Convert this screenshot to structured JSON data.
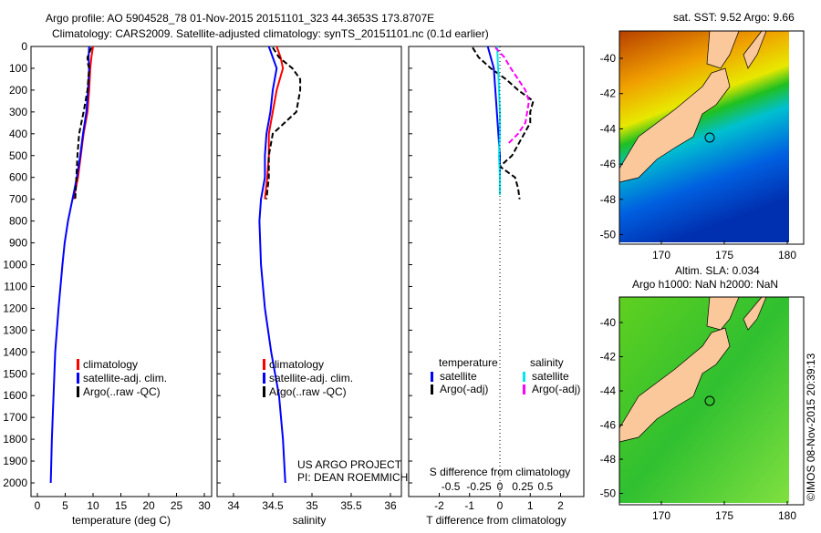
{
  "title_line1": "Argo profile: AO 5904528_78 01-Nov-2015 20151101_323 44.3653S 173.8707E",
  "title_line2": "Climatology: CARS2009. Satellite-adjusted climatology: synTS_20151101.nc (0.1d earlier)",
  "depth_ticks": [
    0,
    100,
    200,
    300,
    400,
    500,
    600,
    700,
    800,
    900,
    1000,
    1100,
    1200,
    1300,
    1400,
    1500,
    1600,
    1700,
    1800,
    1900,
    2000
  ],
  "colors": {
    "clim": "#ff0000",
    "sat": "#0000ff",
    "argo": "#000000",
    "sal_sat": "#00e5ee",
    "sal_argo": "#ff00ff"
  },
  "chart_data": [
    {
      "type": "line",
      "xlabel": "temperature (deg C)",
      "xlim": [
        -1,
        31
      ],
      "ylim": [
        2000,
        0
      ],
      "xticks": [
        0,
        5,
        10,
        15,
        20,
        25,
        30
      ],
      "legend": [
        "climatology",
        "satellite-adj. clim.",
        "Argo(..raw -QC)"
      ],
      "series": [
        {
          "name": "climatology",
          "depth": [
            0,
            50,
            100,
            200,
            300,
            400,
            500,
            600,
            700
          ],
          "values": [
            10,
            9.7,
            9.5,
            9.3,
            9,
            8.3,
            7.8,
            7.3,
            6.5
          ]
        },
        {
          "name": "satellite-adj. clim.",
          "depth": [
            0,
            50,
            100,
            200,
            300,
            400,
            500,
            600,
            700,
            800,
            900,
            1000,
            1200,
            1400,
            1600,
            1800,
            2000
          ],
          "values": [
            9.3,
            9.2,
            9.3,
            9.1,
            8.8,
            8.2,
            7.7,
            7.1,
            6.3,
            5.5,
            4.9,
            4.5,
            3.8,
            3.2,
            2.9,
            2.6,
            2.4
          ]
        },
        {
          "name": "Argo(..raw -QC)",
          "depth": [
            5,
            50,
            80,
            100,
            200,
            300,
            400,
            500,
            600,
            700
          ],
          "values": [
            9.7,
            9.0,
            9.1,
            9.3,
            9.0,
            8.3,
            7.5,
            7.2,
            7.0,
            6.8
          ]
        }
      ]
    },
    {
      "type": "line",
      "xlabel": "salinity",
      "xlim": [
        33.8,
        36.1
      ],
      "ylim": [
        2000,
        0
      ],
      "xticks": [
        34,
        34.5,
        35,
        35.5,
        36
      ],
      "legend": [
        "climatology",
        "satellite-adj. clim.",
        "Argo(..raw -QC)"
      ],
      "annotation": [
        "US ARGO PROJECT",
        "PI: DEAN ROEMMICH"
      ],
      "series": [
        {
          "name": "climatology",
          "depth": [
            0,
            50,
            100,
            200,
            300,
            400,
            500,
            600,
            700
          ],
          "values": [
            34.55,
            34.6,
            34.63,
            34.55,
            34.5,
            34.45,
            34.45,
            34.43,
            34.4
          ]
        },
        {
          "name": "satellite-adj. clim.",
          "depth": [
            0,
            100,
            200,
            300,
            400,
            500,
            600,
            700,
            800,
            1000,
            1200,
            1400,
            1600,
            1800,
            2000
          ],
          "values": [
            34.45,
            34.55,
            34.5,
            34.47,
            34.42,
            34.4,
            34.4,
            34.35,
            34.33,
            34.35,
            34.4,
            34.48,
            34.58,
            34.63,
            34.66
          ]
        },
        {
          "name": "Argo(..raw -QC)",
          "depth": [
            5,
            50,
            100,
            150,
            200,
            300,
            400,
            500,
            600,
            700
          ],
          "values": [
            34.5,
            34.58,
            34.75,
            34.85,
            34.85,
            34.8,
            34.5,
            34.45,
            34.45,
            34.42
          ]
        }
      ]
    },
    {
      "type": "line",
      "xlabel": "T difference from climatology",
      "x2label": "S difference from climatology",
      "xlim": [
        -3,
        3
      ],
      "x2lim": [
        -1,
        1
      ],
      "ylim": [
        2000,
        0
      ],
      "xticks": [
        -2,
        -1,
        0,
        1,
        2
      ],
      "x2ticks": [
        "-0.5",
        "-0.25",
        "0",
        "0.25",
        "0.5"
      ],
      "legend_titles": [
        "temperature",
        "salinity"
      ],
      "legend": [
        "satellite",
        "Argo(-adj)",
        "satellite",
        "Argo(-adj)"
      ],
      "series": [
        {
          "name": "T satellite",
          "axis": "T",
          "depth": [
            0,
            100,
            200,
            300,
            400,
            500,
            600,
            670
          ],
          "values": [
            -0.4,
            -0.2,
            -0.15,
            -0.1,
            -0.05,
            0,
            0,
            0
          ]
        },
        {
          "name": "T Argo(-adj)",
          "axis": "T",
          "depth": [
            5,
            50,
            100,
            150,
            200,
            250,
            300,
            350,
            400,
            450,
            500,
            550,
            600,
            650,
            700
          ],
          "values": [
            -0.9,
            -0.7,
            -0.3,
            0.2,
            0.6,
            1.1,
            1.0,
            1.0,
            0.8,
            0.6,
            0.4,
            0.0,
            0.5,
            0.6,
            0.65
          ]
        },
        {
          "name": "S satellite",
          "axis": "S",
          "depth": [
            0,
            100,
            200,
            300,
            400,
            500,
            600,
            680
          ],
          "values": [
            -0.03,
            -0.02,
            -0.01,
            0,
            0.0,
            -0.01,
            0,
            0
          ]
        },
        {
          "name": "S Argo(-adj)",
          "axis": "S",
          "depth": [
            5,
            50,
            100,
            150,
            200,
            250,
            300,
            350,
            400,
            450
          ],
          "values": [
            -0.05,
            0.05,
            0.12,
            0.2,
            0.28,
            0.32,
            0.3,
            0.28,
            0.2,
            0.08
          ]
        }
      ]
    }
  ],
  "maps": [
    {
      "title": "sat. SST: 9.52 Argo: 9.66",
      "yticks": [
        "-40",
        "-42",
        "-44",
        "-46",
        "-48",
        "-50"
      ],
      "xticks": [
        "170",
        "175",
        "180"
      ]
    },
    {
      "title1": "Altim. SLA: 0.034",
      "title2": "Argo h1000: NaN h2000: NaN",
      "yticks": [
        "-40",
        "-42",
        "-44",
        "-46",
        "-48",
        "-50"
      ],
      "xticks": [
        "170",
        "175",
        "180"
      ]
    }
  ],
  "watermark": "©IMOS 08-Nov-2015 20:39:13"
}
